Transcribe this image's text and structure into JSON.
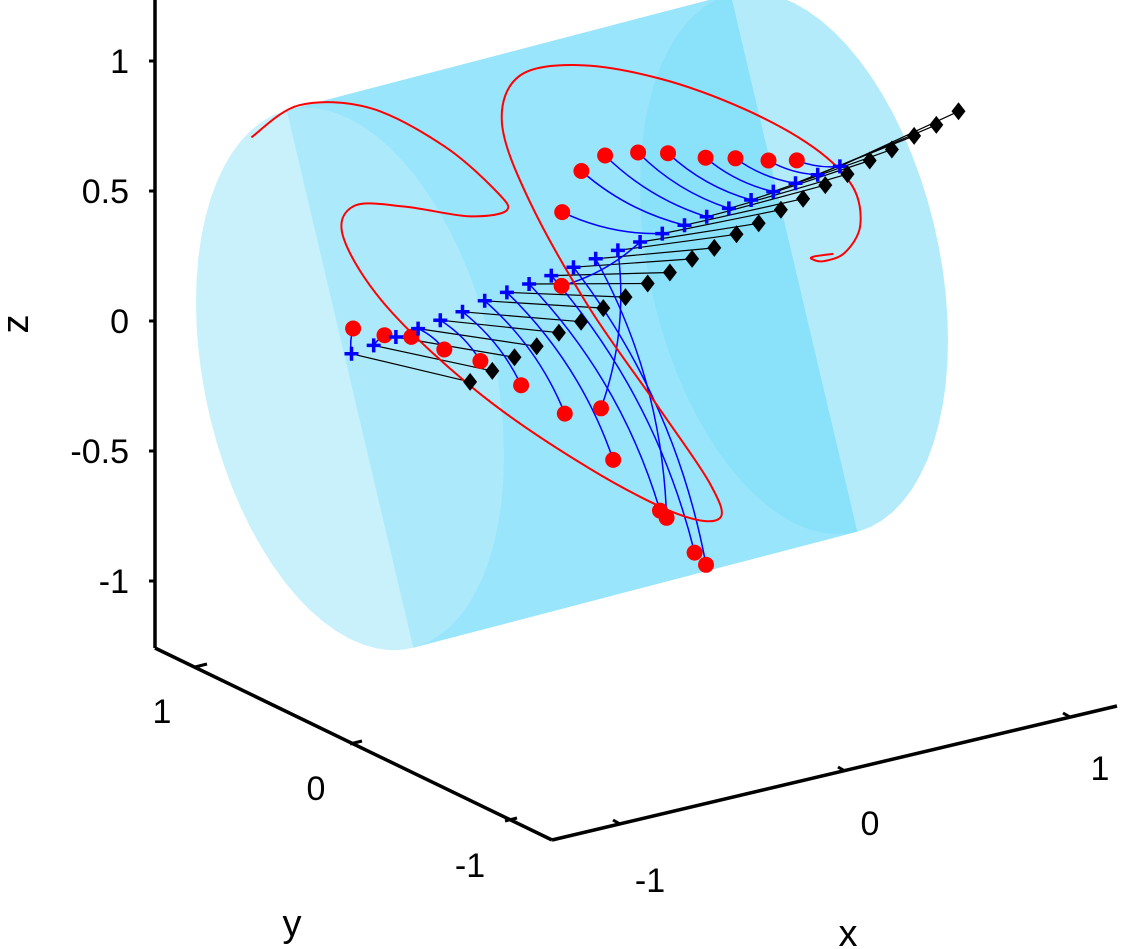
{
  "chart_data": {
    "type": "scatter",
    "projection": "3d",
    "title": "",
    "xlabel": "x",
    "ylabel": "y",
    "zlabel": "z",
    "xlim": [
      -1.2,
      1.2
    ],
    "ylim": [
      -1.2,
      1.2
    ],
    "zlim": [
      -1.2,
      1.2
    ],
    "x_ticks": [
      "-1",
      "0",
      "1"
    ],
    "y_ticks": [
      "1",
      "0",
      "-1"
    ],
    "z_ticks": [
      "1",
      "0.5",
      "0",
      "-0.5",
      "-1"
    ],
    "grid": false,
    "legend": "none",
    "cylinder": {
      "axis": "x",
      "radius": 1,
      "x_range": [
        -1,
        1
      ],
      "side_color": "#80dffa",
      "cap_color": "#b3ebfb"
    },
    "colors": {
      "curve": "#ff0000",
      "circles": "#ff0000",
      "crosses": "#0000ff",
      "diamonds": "#000000",
      "blue_links": "#0000ff",
      "black_links": "#000000"
    },
    "series": [
      {
        "kind": "curve",
        "x": [
          -1.0,
          -0.93,
          -0.86,
          -0.79,
          -0.72,
          -0.65,
          -0.58,
          -0.51,
          -0.44,
          -0.37,
          -0.3,
          -0.23,
          -0.16,
          -0.09,
          -0.02,
          0.05,
          0.12,
          0.19,
          0.26,
          0.33,
          0.4,
          0.47,
          0.54,
          0.61,
          0.68,
          0.75,
          0.82,
          0.89,
          0.96,
          1.03,
          1.1,
          1.17
        ],
        "y": [
          0.64,
          0.43,
          0.07,
          -0.31,
          -0.55,
          -0.51,
          -0.16,
          0.35,
          0.78,
          0.95,
          0.76,
          0.25,
          -0.35,
          -0.82,
          -0.99,
          -0.82,
          -0.4,
          0.16,
          0.65,
          0.93,
          0.92,
          0.64,
          0.21,
          -0.24,
          -0.59,
          -0.74,
          -0.69,
          -0.49,
          -0.25,
          -0.07,
          0.01,
          -0.01
        ],
        "z": [
          0.74,
          0.91,
          0.99,
          0.94,
          0.82,
          0.72,
          0.58,
          0.45,
          0.31,
          0.12,
          -0.11,
          -0.31,
          -0.43,
          -0.48,
          -0.46,
          -0.39,
          -0.25,
          -0.04,
          0.21,
          0.41,
          0.58,
          0.69,
          0.75,
          0.75,
          0.69,
          0.57,
          0.39,
          0.21,
          0.09,
          0.03,
          0.0,
          0.0
        ]
      },
      {
        "kind": "circles",
        "x": [
          -1.0,
          -0.9,
          -0.8,
          -0.7,
          -0.6,
          -0.5,
          -0.4,
          -0.3,
          -0.2,
          -0.1,
          0.0,
          0.1,
          0.2,
          0.3,
          0.4,
          0.5,
          0.6,
          0.7,
          0.8,
          0.9,
          1.0,
          1.1,
          1.2
        ],
        "y": [
          -0.02,
          -0.08,
          -0.11,
          -0.18,
          -0.27,
          -0.39,
          -0.53,
          -0.7,
          -0.86,
          -0.94,
          -0.87,
          -0.47,
          0.1,
          0.5,
          0.64,
          0.66,
          0.65,
          0.58,
          0.53,
          0.43,
          0.38,
          0.31,
          0.27
        ],
        "z": [
          0.2,
          0.17,
          0.15,
          0.1,
          0.06,
          -0.02,
          -0.11,
          -0.26,
          -0.43,
          -0.59,
          -0.68,
          -0.64,
          -0.41,
          -0.08,
          0.14,
          0.27,
          0.31,
          0.32,
          0.31,
          0.3,
          0.29,
          0.28,
          0.27
        ]
      },
      {
        "kind": "crosses",
        "x": [
          -1.0,
          -0.9,
          -0.8,
          -0.7,
          -0.6,
          -0.5,
          -0.4,
          -0.3,
          -0.2,
          -0.1,
          0.0,
          0.1,
          0.2,
          0.3,
          0.4,
          0.5,
          0.6,
          0.7,
          0.8,
          0.9,
          1.0,
          1.1,
          1.2
        ],
        "y": [
          -0.01,
          -0.01,
          -0.01,
          -0.01,
          -0.01,
          -0.01,
          -0.01,
          -0.01,
          -0.01,
          -0.01,
          -0.01,
          -0.01,
          -0.01,
          -0.01,
          -0.01,
          -0.01,
          -0.01,
          -0.01,
          -0.01,
          -0.01,
          -0.01,
          -0.01,
          -0.01
        ],
        "z": [
          0.1,
          0.11,
          0.12,
          0.13,
          0.14,
          0.15,
          0.17,
          0.18,
          0.19,
          0.2,
          0.21,
          0.22,
          0.23,
          0.24,
          0.25,
          0.26,
          0.27,
          0.28,
          0.29,
          0.3,
          0.31,
          0.32,
          0.33
        ]
      },
      {
        "kind": "diamonds",
        "x": [
          -1.0,
          -0.9,
          -0.8,
          -0.7,
          -0.6,
          -0.5,
          -0.4,
          -0.3,
          -0.2,
          -0.1,
          0.0,
          0.1,
          0.2,
          0.3,
          0.4,
          0.5,
          0.6,
          0.7,
          0.8,
          0.9,
          1.0,
          1.1,
          1.2
        ],
        "y": [
          -0.78,
          -0.78,
          -0.78,
          -0.78,
          -0.78,
          -0.78,
          -0.78,
          -0.78,
          -0.78,
          -0.78,
          -0.78,
          -0.78,
          -0.78,
          -0.78,
          -0.78,
          -0.78,
          -0.78,
          -0.78,
          -0.78,
          -0.78,
          -0.78,
          -0.78,
          -0.78
        ],
        "z": [
          0.22,
          0.24,
          0.27,
          0.29,
          0.32,
          0.34,
          0.37,
          0.39,
          0.42,
          0.44,
          0.47,
          0.49,
          0.52,
          0.54,
          0.57,
          0.59,
          0.62,
          0.64,
          0.67,
          0.69,
          0.72,
          0.74,
          0.77
        ]
      }
    ]
  }
}
